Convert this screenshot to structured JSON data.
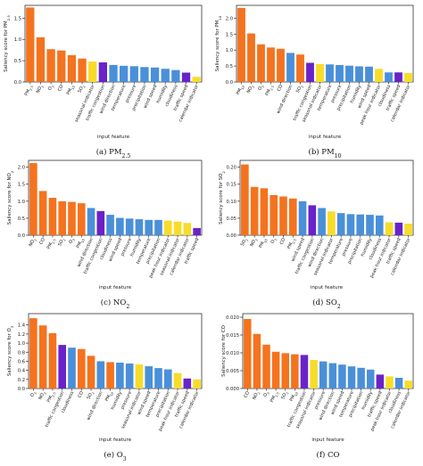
{
  "figure": {
    "captions": [
      "(a) PM2.5",
      "(b) PM10",
      "(c) NO2",
      "(d) SO2",
      "(e) O3",
      "(f) CO"
    ]
  },
  "colors": {
    "pollutant": "#f4731f",
    "traffic": "#6a22c9",
    "calendar": "#f7dc2a",
    "weather": "#4a90d9"
  },
  "chart_data": [
    {
      "type": "bar",
      "caption": "(a) PM2.5",
      "xlabel": "input feature",
      "ylabel": "Saliency score for PM2.5",
      "ylim": [
        0,
        1.8
      ],
      "yticks": [
        "0.0",
        "0.5",
        "1.0",
        "1.5"
      ],
      "categories": [
        "PM2.5",
        "NO2",
        "O3",
        "CO",
        "PM10",
        "SO2",
        "seasonal indicator",
        "traffic congestion",
        "wind direction",
        "temperature",
        "pressure",
        "precipitation",
        "wind speed",
        "humidity",
        "cloudiness",
        "traffic speed",
        "calendar indicator"
      ],
      "values": [
        1.75,
        1.05,
        0.77,
        0.74,
        0.63,
        0.55,
        0.48,
        0.46,
        0.4,
        0.38,
        0.37,
        0.35,
        0.34,
        0.31,
        0.28,
        0.22,
        0.12
      ],
      "colors": [
        "pollutant",
        "pollutant",
        "pollutant",
        "pollutant",
        "pollutant",
        "pollutant",
        "calendar",
        "traffic",
        "weather",
        "weather",
        "weather",
        "weather",
        "weather",
        "weather",
        "weather",
        "traffic",
        "calendar"
      ]
    },
    {
      "type": "bar",
      "caption": "(b) PM10",
      "xlabel": "input feature",
      "ylabel": "Saliency score for PM10",
      "ylim": [
        0,
        2.4
      ],
      "yticks": [
        "0.0",
        "0.5",
        "1.0",
        "1.5",
        "2.0"
      ],
      "categories": [
        "PM10",
        "NO2",
        "O3",
        "PM2.5",
        "CO",
        "wind direction",
        "SO2",
        "traffic congestion",
        "seasonal indicator",
        "temperature",
        "pressure",
        "precipitation",
        "humidity",
        "wind speed",
        "peak hour indicator",
        "cloudiness",
        "traffic speed",
        "calendar indicator"
      ],
      "values": [
        2.32,
        1.52,
        1.18,
        1.08,
        1.04,
        0.91,
        0.86,
        0.6,
        0.56,
        0.55,
        0.53,
        0.51,
        0.49,
        0.48,
        0.41,
        0.3,
        0.3,
        0.28
      ],
      "colors": [
        "pollutant",
        "pollutant",
        "pollutant",
        "pollutant",
        "pollutant",
        "weather",
        "pollutant",
        "traffic",
        "calendar",
        "weather",
        "weather",
        "weather",
        "weather",
        "weather",
        "calendar",
        "weather",
        "traffic",
        "calendar"
      ]
    },
    {
      "type": "bar",
      "caption": "(c) NO2",
      "xlabel": "input feature",
      "ylabel": "Saliency score for NO2",
      "ylim": [
        0,
        2.2
      ],
      "yticks": [
        "0.0",
        "0.5",
        "1.0",
        "1.5",
        "2.0"
      ],
      "categories": [
        "NO2",
        "CO",
        "PM2.5",
        "SO2",
        "O3",
        "PM10",
        "wind direction",
        "traffic congestion",
        "cloudiness",
        "wind speed",
        "pressure",
        "humidity",
        "temperature",
        "precipitation",
        "peak hour indicator",
        "seasonal indicator",
        "calendar indicator",
        "traffic speed"
      ],
      "values": [
        2.12,
        1.3,
        1.1,
        1.0,
        0.98,
        0.94,
        0.8,
        0.71,
        0.6,
        0.51,
        0.49,
        0.47,
        0.45,
        0.45,
        0.43,
        0.4,
        0.36,
        0.21
      ],
      "colors": [
        "pollutant",
        "pollutant",
        "pollutant",
        "pollutant",
        "pollutant",
        "pollutant",
        "weather",
        "traffic",
        "weather",
        "weather",
        "weather",
        "weather",
        "weather",
        "weather",
        "calendar",
        "calendar",
        "calendar",
        "traffic"
      ]
    },
    {
      "type": "bar",
      "caption": "(d) SO2",
      "xlabel": "input feature",
      "ylabel": "Saliency score for SO2",
      "ylim": [
        0,
        0.22
      ],
      "yticks": [
        "0.00",
        "0.05",
        "0.10",
        "0.15",
        "0.20"
      ],
      "categories": [
        "SO2",
        "NO2",
        "PM10",
        "O3",
        "CO",
        "PM2.5",
        "wind speed",
        "traffic congestion",
        "wind direction",
        "seasonal indicator",
        "temperature",
        "pressure",
        "precipitation",
        "humidity",
        "cloudiness",
        "peak hour indicator",
        "traffic speed",
        "calendar indicator"
      ],
      "values": [
        0.208,
        0.142,
        0.138,
        0.118,
        0.114,
        0.108,
        0.1,
        0.088,
        0.08,
        0.07,
        0.065,
        0.062,
        0.061,
        0.06,
        0.058,
        0.038,
        0.037,
        0.034
      ],
      "colors": [
        "pollutant",
        "pollutant",
        "pollutant",
        "pollutant",
        "pollutant",
        "pollutant",
        "weather",
        "traffic",
        "weather",
        "calendar",
        "weather",
        "weather",
        "weather",
        "weather",
        "weather",
        "calendar",
        "traffic",
        "calendar"
      ]
    },
    {
      "type": "bar",
      "caption": "(e) O3",
      "xlabel": "input feature",
      "ylabel": "Saliency score for O3",
      "ylim": [
        0,
        1.65
      ],
      "yticks": [
        "0.0",
        "0.2",
        "0.4",
        "0.6",
        "0.8",
        "1.0",
        "1.2",
        "1.4"
      ],
      "categories": [
        "O3",
        "NO2",
        "PM2.5",
        "traffic congestion",
        "cloudiness",
        "CO",
        "SO2",
        "wind direction",
        "PM10",
        "humidity",
        "pressure",
        "seasonal indicator",
        "wind speed",
        "temperature",
        "precipitation",
        "peak hour indicator",
        "traffic speed",
        "calendar indicator"
      ],
      "values": [
        1.55,
        1.39,
        1.22,
        0.96,
        0.9,
        0.87,
        0.72,
        0.6,
        0.58,
        0.57,
        0.55,
        0.53,
        0.49,
        0.45,
        0.42,
        0.34,
        0.22,
        0.2
      ],
      "colors": [
        "pollutant",
        "pollutant",
        "pollutant",
        "traffic",
        "weather",
        "pollutant",
        "pollutant",
        "weather",
        "pollutant",
        "weather",
        "weather",
        "calendar",
        "weather",
        "weather",
        "weather",
        "calendar",
        "traffic",
        "calendar"
      ]
    },
    {
      "type": "bar",
      "caption": "(f) CO",
      "xlabel": "input feature",
      "ylabel": "Saliency score for CO",
      "ylim": [
        0,
        0.021
      ],
      "yticks": [
        "0.000",
        "0.005",
        "0.010",
        "0.015",
        "0.020"
      ],
      "categories": [
        "CO",
        "NO2",
        "O3",
        "PM2.5",
        "SO2",
        "PM10",
        "traffic congestion",
        "seasonal indicator",
        "pressure",
        "wind direction",
        "wind speed",
        "temperature",
        "precipitation",
        "humidity",
        "traffic speed",
        "peak hour indicator",
        "cloudiness",
        "calendar indicator"
      ],
      "values": [
        0.0195,
        0.0153,
        0.0123,
        0.0103,
        0.0099,
        0.0096,
        0.0094,
        0.008,
        0.0076,
        0.0071,
        0.0067,
        0.0062,
        0.0058,
        0.0053,
        0.0039,
        0.0034,
        0.003,
        0.0022
      ],
      "colors": [
        "pollutant",
        "pollutant",
        "pollutant",
        "pollutant",
        "pollutant",
        "pollutant",
        "traffic",
        "calendar",
        "weather",
        "weather",
        "weather",
        "weather",
        "weather",
        "weather",
        "traffic",
        "calendar",
        "weather",
        "calendar"
      ]
    }
  ]
}
